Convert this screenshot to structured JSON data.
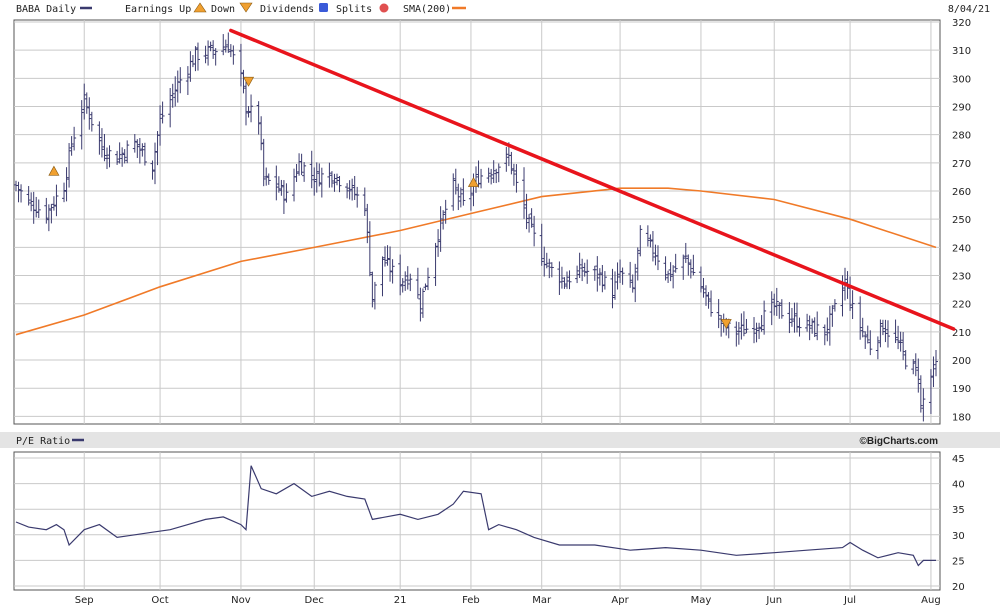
{
  "header": {
    "symbol_label": "BABA Daily",
    "earnings_up_label": "Earnings Up",
    "down_label": "Down",
    "dividends_label": "Dividends",
    "splits_label": "Splits",
    "sma_label": "SMA(200)",
    "date_label": "8/04/21"
  },
  "pe_panel": {
    "label": "P/E Ratio",
    "brand": "©BigCharts.com"
  },
  "colors": {
    "bars": "#3a3a6e",
    "sma": "#f07a28",
    "trendline": "#e8141c",
    "grid": "#c9c9c9",
    "earnings_marker": "#f0a030",
    "dividend_marker": "#3a5ad8",
    "split_marker": "#e05050"
  },
  "chart_data": [
    {
      "type": "ohlc",
      "name": "BABA Daily",
      "x_axis": {
        "labels": [
          "Sep",
          "Oct",
          "Nov",
          "Dec",
          "21",
          "Feb",
          "Mar",
          "Apr",
          "May",
          "Jun",
          "Jul",
          "Aug"
        ],
        "label_dates": [
          "2020-09-01",
          "2020-10-01",
          "2020-11-02",
          "2020-12-01",
          "2021-01-04",
          "2021-02-01",
          "2021-03-01",
          "2021-04-01",
          "2021-05-03",
          "2021-06-01",
          "2021-07-01",
          "2021-08-02"
        ],
        "range": [
          "2020-08-05",
          "2021-08-04"
        ]
      },
      "y_axis": {
        "ticks": [
          180,
          190,
          200,
          210,
          220,
          230,
          240,
          250,
          260,
          270,
          280,
          290,
          300,
          310,
          320
        ],
        "range": [
          178,
          320
        ],
        "side": "right"
      },
      "grid": true,
      "close_points": [
        [
          "2020-08-05",
          262
        ],
        [
          "2020-08-10",
          256
        ],
        [
          "2020-08-17",
          252
        ],
        [
          "2020-08-24",
          262
        ],
        [
          "2020-08-27",
          277
        ],
        [
          "2020-09-01",
          292
        ],
        [
          "2020-09-08",
          275
        ],
        [
          "2020-09-14",
          272
        ],
        [
          "2020-09-21",
          277
        ],
        [
          "2020-09-28",
          269
        ],
        [
          "2020-10-01",
          285
        ],
        [
          "2020-10-08",
          298
        ],
        [
          "2020-10-15",
          308
        ],
        [
          "2020-10-22",
          310
        ],
        [
          "2020-10-28",
          312
        ],
        [
          "2020-11-02",
          300
        ],
        [
          "2020-11-04",
          290
        ],
        [
          "2020-11-09",
          285
        ],
        [
          "2020-11-11",
          264
        ],
        [
          "2020-11-16",
          262
        ],
        [
          "2020-11-20",
          258
        ],
        [
          "2020-11-25",
          270
        ],
        [
          "2020-12-01",
          265
        ],
        [
          "2020-12-08",
          266
        ],
        [
          "2020-12-14",
          262
        ],
        [
          "2020-12-21",
          255
        ],
        [
          "2020-12-24",
          222
        ],
        [
          "2020-12-28",
          236
        ],
        [
          "2021-01-04",
          228
        ],
        [
          "2021-01-08",
          230
        ],
        [
          "2021-01-12",
          220
        ],
        [
          "2021-01-19",
          245
        ],
        [
          "2021-01-25",
          262
        ],
        [
          "2021-01-29",
          255
        ],
        [
          "2021-02-04",
          265
        ],
        [
          "2021-02-10",
          268
        ],
        [
          "2021-02-16",
          272
        ],
        [
          "2021-02-19",
          262
        ],
        [
          "2021-02-24",
          248
        ],
        [
          "2021-03-01",
          237
        ],
        [
          "2021-03-05",
          232
        ],
        [
          "2021-03-10",
          228
        ],
        [
          "2021-03-17",
          232
        ],
        [
          "2021-03-24",
          230
        ],
        [
          "2021-03-29",
          224
        ],
        [
          "2021-04-01",
          231
        ],
        [
          "2021-04-06",
          225
        ],
        [
          "2021-04-09",
          244
        ],
        [
          "2021-04-15",
          238
        ],
        [
          "2021-04-20",
          230
        ],
        [
          "2021-04-27",
          236
        ],
        [
          "2021-05-03",
          226
        ],
        [
          "2021-05-06",
          220
        ],
        [
          "2021-05-12",
          212
        ],
        [
          "2021-05-17",
          210
        ],
        [
          "2021-05-24",
          212
        ],
        [
          "2021-06-01",
          219
        ],
        [
          "2021-06-07",
          215
        ],
        [
          "2021-06-14",
          212
        ],
        [
          "2021-06-21",
          210
        ],
        [
          "2021-06-25",
          218
        ],
        [
          "2021-06-29",
          228
        ],
        [
          "2021-07-02",
          218
        ],
        [
          "2021-07-06",
          210
        ],
        [
          "2021-07-09",
          205
        ],
        [
          "2021-07-14",
          212
        ],
        [
          "2021-07-20",
          206
        ],
        [
          "2021-07-23",
          200
        ],
        [
          "2021-07-27",
          196
        ],
        [
          "2021-07-28",
          195
        ],
        [
          "2021-07-29",
          183
        ],
        [
          "2021-08-02",
          194
        ],
        [
          "2021-08-04",
          198
        ]
      ]
    },
    {
      "type": "line",
      "name": "SMA(200)",
      "points": [
        [
          "2020-08-05",
          209
        ],
        [
          "2020-09-01",
          216
        ],
        [
          "2020-10-01",
          226
        ],
        [
          "2020-11-02",
          235
        ],
        [
          "2020-12-01",
          240
        ],
        [
          "2021-01-04",
          246
        ],
        [
          "2021-02-01",
          252
        ],
        [
          "2021-03-01",
          258
        ],
        [
          "2021-04-01",
          261
        ],
        [
          "2021-04-20",
          261
        ],
        [
          "2021-05-03",
          260
        ],
        [
          "2021-06-01",
          257
        ],
        [
          "2021-07-01",
          250
        ],
        [
          "2021-08-04",
          240
        ]
      ]
    },
    {
      "type": "line",
      "name": "Trend line",
      "points": [
        [
          "2020-10-29",
          317
        ],
        [
          "2021-08-11",
          211
        ]
      ]
    },
    {
      "type": "markers",
      "name": "Earnings",
      "points": [
        {
          "date": "2020-08-20",
          "y": 267,
          "direction": "up"
        },
        {
          "date": "2020-11-05",
          "y": 299,
          "direction": "down"
        },
        {
          "date": "2021-02-02",
          "y": 263,
          "direction": "up"
        },
        {
          "date": "2021-05-13",
          "y": 213,
          "direction": "down"
        }
      ]
    },
    {
      "type": "line",
      "name": "P/E Ratio",
      "x_axis": {
        "range": [
          "2020-08-05",
          "2021-08-04"
        ]
      },
      "y_axis": {
        "ticks": [
          20,
          25,
          30,
          35,
          40,
          45
        ],
        "range": [
          20,
          45
        ],
        "side": "right"
      },
      "grid": true,
      "points": [
        [
          "2020-08-05",
          32.5
        ],
        [
          "2020-08-10",
          31.5
        ],
        [
          "2020-08-17",
          31.0
        ],
        [
          "2020-08-21",
          32.0
        ],
        [
          "2020-08-24",
          31.0
        ],
        [
          "2020-08-26",
          28.0
        ],
        [
          "2020-09-01",
          31.0
        ],
        [
          "2020-09-07",
          32.0
        ],
        [
          "2020-09-14",
          29.5
        ],
        [
          "2020-09-21",
          30.0
        ],
        [
          "2020-09-28",
          30.5
        ],
        [
          "2020-10-05",
          31.0
        ],
        [
          "2020-10-12",
          32.0
        ],
        [
          "2020-10-19",
          33.0
        ],
        [
          "2020-10-26",
          33.5
        ],
        [
          "2020-11-02",
          32.0
        ],
        [
          "2020-11-04",
          31.0
        ],
        [
          "2020-11-06",
          43.5
        ],
        [
          "2020-11-10",
          39.0
        ],
        [
          "2020-11-16",
          38.0
        ],
        [
          "2020-11-23",
          40.0
        ],
        [
          "2020-11-30",
          37.5
        ],
        [
          "2020-12-07",
          38.5
        ],
        [
          "2020-12-14",
          37.5
        ],
        [
          "2020-12-21",
          37.0
        ],
        [
          "2020-12-24",
          33.0
        ],
        [
          "2021-01-04",
          34.0
        ],
        [
          "2021-01-11",
          33.0
        ],
        [
          "2021-01-19",
          34.0
        ],
        [
          "2021-01-25",
          36.0
        ],
        [
          "2021-01-29",
          38.5
        ],
        [
          "2021-02-05",
          38.0
        ],
        [
          "2021-02-08",
          31.0
        ],
        [
          "2021-02-12",
          32.0
        ],
        [
          "2021-02-19",
          31.0
        ],
        [
          "2021-02-26",
          29.5
        ],
        [
          "2021-03-08",
          28.0
        ],
        [
          "2021-03-22",
          28.0
        ],
        [
          "2021-04-05",
          27.0
        ],
        [
          "2021-04-19",
          27.5
        ],
        [
          "2021-05-03",
          27.0
        ],
        [
          "2021-05-17",
          26.0
        ],
        [
          "2021-06-01",
          26.5
        ],
        [
          "2021-06-14",
          27.0
        ],
        [
          "2021-06-28",
          27.5
        ],
        [
          "2021-07-01",
          28.5
        ],
        [
          "2021-07-06",
          27.0
        ],
        [
          "2021-07-12",
          25.5
        ],
        [
          "2021-07-20",
          26.5
        ],
        [
          "2021-07-26",
          26.0
        ],
        [
          "2021-07-28",
          24.0
        ],
        [
          "2021-07-30",
          25.0
        ],
        [
          "2021-08-04",
          25.0
        ]
      ]
    }
  ]
}
